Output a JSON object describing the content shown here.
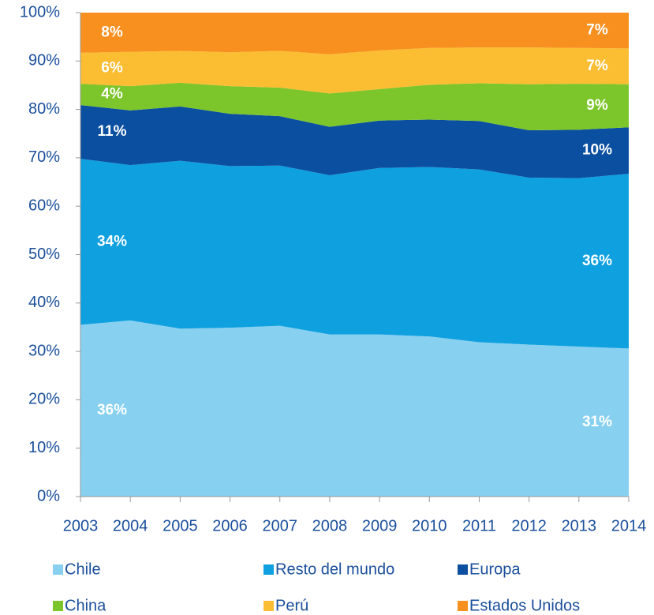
{
  "chart_data": {
    "type": "stacked_area",
    "categories": [
      "2003",
      "2004",
      "2005",
      "2006",
      "2007",
      "2008",
      "2009",
      "2010",
      "2011",
      "2012",
      "2013",
      "2014"
    ],
    "series": [
      {
        "name": "Chile",
        "color": "#87d0f0",
        "values": [
          35.5,
          36.4,
          34.7,
          34.9,
          35.3,
          33.5,
          33.5,
          33.1,
          31.9,
          31.4,
          31.0,
          30.6
        ],
        "value_labels": [
          "36%",
          null,
          null,
          null,
          null,
          null,
          null,
          null,
          null,
          null,
          null,
          "31%"
        ]
      },
      {
        "name": "Resto del mundo",
        "color": "#0ea0df",
        "values": [
          34.3,
          32.1,
          34.7,
          33.4,
          33.1,
          32.9,
          34.4,
          35.0,
          35.7,
          34.5,
          34.8,
          36.1
        ],
        "value_labels": [
          "34%",
          null,
          null,
          null,
          null,
          null,
          null,
          null,
          null,
          null,
          null,
          "36%"
        ]
      },
      {
        "name": "Europa",
        "color": "#0b4fa0",
        "values": [
          11.1,
          11.3,
          11.2,
          10.8,
          10.2,
          10.0,
          9.8,
          9.8,
          10.0,
          9.8,
          10.0,
          9.6
        ],
        "value_labels": [
          "11%",
          null,
          null,
          null,
          null,
          null,
          null,
          null,
          null,
          null,
          null,
          "10%"
        ]
      },
      {
        "name": "China",
        "color": "#7cc52a",
        "values": [
          4.4,
          5.0,
          4.9,
          5.7,
          5.9,
          6.9,
          6.5,
          7.2,
          7.8,
          9.5,
          9.5,
          8.9
        ],
        "value_labels": [
          "4%",
          null,
          null,
          null,
          null,
          null,
          null,
          null,
          null,
          null,
          null,
          "9%"
        ]
      },
      {
        "name": "Perú",
        "color": "#fbbd32",
        "values": [
          6.4,
          7.1,
          6.6,
          7.0,
          7.6,
          8.1,
          8.0,
          7.6,
          7.4,
          7.6,
          7.4,
          7.4
        ],
        "value_labels": [
          "6%",
          null,
          null,
          null,
          null,
          null,
          null,
          null,
          null,
          null,
          null,
          "7%"
        ]
      },
      {
        "name": "Estados Unidos",
        "color": "#f7901e",
        "values": [
          8.3,
          8.1,
          7.9,
          8.2,
          7.9,
          8.6,
          7.8,
          7.3,
          7.2,
          7.2,
          7.3,
          7.4
        ],
        "value_labels": [
          "8%",
          null,
          null,
          null,
          null,
          null,
          null,
          null,
          null,
          null,
          null,
          "7%"
        ]
      }
    ],
    "ylim": [
      0,
      100
    ],
    "yticks": [
      {
        "value": 0,
        "label": "0%"
      },
      {
        "value": 10,
        "label": "10%"
      },
      {
        "value": 20,
        "label": "20%"
      },
      {
        "value": 30,
        "label": "30%"
      },
      {
        "value": 40,
        "label": "40%"
      },
      {
        "value": 50,
        "label": "50%"
      },
      {
        "value": 60,
        "label": "60%"
      },
      {
        "value": 70,
        "label": "70%"
      },
      {
        "value": 80,
        "label": "80%"
      },
      {
        "value": 90,
        "label": "90%"
      },
      {
        "value": 100,
        "label": "100%"
      }
    ],
    "legend": "bottom"
  }
}
